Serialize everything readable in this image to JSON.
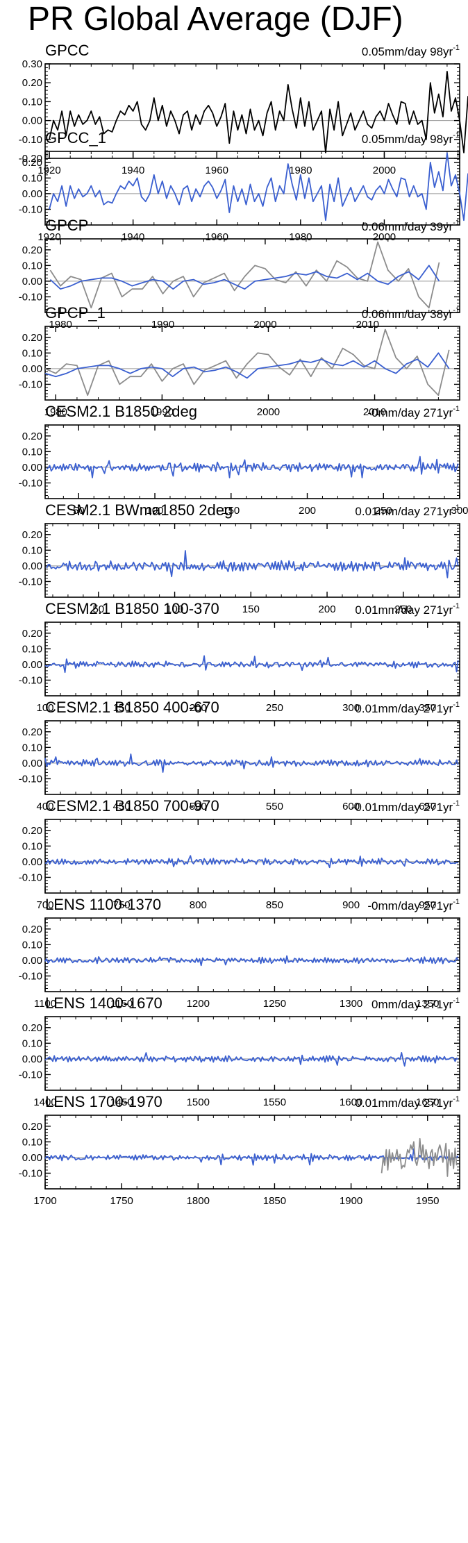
{
  "page": {
    "title": "PR Global Average (DJF)"
  },
  "colors": {
    "blue": "#3a5fd0",
    "gray": "#8c8c8c",
    "black": "#000000"
  },
  "chart_data": [
    {
      "type": "line",
      "title": "GPCC",
      "trend": "0.05mm/day 98yr",
      "xlim": [
        1919,
        2018
      ],
      "ylim": [
        -0.2,
        0.3
      ],
      "yticks": [
        0.3,
        0.2,
        0.1,
        0.0,
        -0.1,
        -0.2
      ],
      "ytick_labels": [
        "0.30",
        "0.20",
        "0.10",
        "0.00",
        "-0.10",
        "-0.20"
      ],
      "xticks": [
        1920,
        1940,
        1960,
        1980,
        2000
      ],
      "series": [
        {
          "color": "black",
          "x_start": 1920,
          "x_step": 1,
          "values": [
            -0.1,
            0.0,
            -0.05,
            0.05,
            -0.08,
            0.05,
            -0.03,
            0.03,
            -0.02,
            0.0,
            0.05,
            -0.02,
            0.02,
            -0.07,
            -0.05,
            -0.06,
            0.0,
            0.05,
            0.03,
            0.08,
            0.05,
            0.1,
            -0.02,
            -0.05,
            0.0,
            0.12,
            0.0,
            0.08,
            -0.03,
            0.05,
            0.0,
            -0.07,
            0.03,
            0.05,
            -0.05,
            0.03,
            -0.02,
            0.05,
            0.08,
            0.04,
            -0.03,
            0.02,
            0.09,
            -0.12,
            0.05,
            -0.05,
            0.03,
            -0.07,
            0.06,
            -0.05,
            0.0,
            -0.08,
            0.04,
            0.1,
            -0.05,
            0.05,
            0.0,
            0.19,
            0.06,
            -0.04,
            0.12,
            -0.03,
            0.1,
            -0.05,
            0.0,
            0.05,
            -0.17,
            0.06,
            -0.05,
            0.1,
            -0.08,
            -0.02,
            0.04,
            -0.05,
            0.0,
            0.05,
            -0.02,
            -0.04,
            0.02,
            0.05,
            0.0,
            0.09,
            0.03,
            -0.02,
            0.1,
            0.09,
            -0.02,
            0.05,
            -0.02,
            0.0,
            -0.1,
            0.2,
            0.04,
            0.14,
            0.02,
            0.26,
            0.05,
            0.12,
            0.0,
            -0.17,
            0.13
          ]
        }
      ]
    },
    {
      "type": "line",
      "title": "GPCC_1",
      "trend": "0.05mm/day 98yr",
      "xlim": [
        1919,
        2018
      ],
      "ylim": [
        -0.2,
        0.27
      ],
      "yticks": [
        0.2,
        0.1,
        0.0,
        -0.1
      ],
      "ytick_labels": [
        "0.20",
        "0.10",
        "0.00",
        "-0.10"
      ],
      "xticks": [
        1920,
        1940,
        1960,
        1980,
        2000
      ],
      "series": [
        {
          "color": "blue",
          "x_start": 1920,
          "x_step": 1,
          "values": [
            -0.1,
            0.0,
            -0.05,
            0.05,
            -0.08,
            0.05,
            -0.03,
            0.03,
            -0.02,
            0.0,
            0.05,
            -0.02,
            0.02,
            -0.07,
            -0.05,
            -0.06,
            0.0,
            0.05,
            0.03,
            0.08,
            0.05,
            0.1,
            -0.02,
            -0.05,
            0.0,
            0.12,
            0.0,
            0.08,
            -0.03,
            0.05,
            0.0,
            -0.07,
            0.03,
            0.05,
            -0.05,
            0.03,
            -0.02,
            0.05,
            0.08,
            0.04,
            -0.03,
            0.02,
            0.09,
            -0.12,
            0.05,
            -0.05,
            0.03,
            -0.07,
            0.06,
            -0.05,
            0.0,
            -0.08,
            0.04,
            0.1,
            -0.05,
            0.05,
            0.0,
            0.19,
            0.06,
            -0.04,
            0.12,
            -0.03,
            0.1,
            -0.05,
            0.0,
            0.05,
            -0.17,
            0.06,
            -0.05,
            0.1,
            -0.08,
            -0.02,
            0.04,
            -0.05,
            0.0,
            0.05,
            -0.02,
            -0.04,
            0.02,
            0.05,
            0.0,
            0.09,
            0.03,
            -0.02,
            0.1,
            0.09,
            -0.02,
            0.05,
            -0.02,
            0.0,
            -0.1,
            0.2,
            0.04,
            0.14,
            0.02,
            0.26,
            0.05,
            0.12,
            0.0,
            -0.17,
            0.13
          ]
        }
      ]
    },
    {
      "type": "line",
      "title": "GPCP",
      "trend": "0.06mm/day 39yr",
      "xlim": [
        1978.5,
        2019
      ],
      "ylim": [
        -0.2,
        0.27
      ],
      "yticks": [
        0.2,
        0.1,
        0.0,
        -0.1
      ],
      "ytick_labels": [
        "0.20",
        "0.10",
        "0.00",
        "-0.10"
      ],
      "xticks": [
        1980,
        1990,
        2000,
        2010
      ],
      "series": [
        {
          "color": "gray",
          "x_start": 1979,
          "x_step": 1,
          "values": [
            0.07,
            -0.03,
            0.03,
            0.01,
            -0.17,
            0.02,
            0.05,
            -0.1,
            -0.05,
            -0.05,
            0.03,
            -0.08,
            0.0,
            0.03,
            -0.1,
            -0.01,
            0.02,
            0.05,
            -0.06,
            0.03,
            0.1,
            0.08,
            0.01,
            -0.01,
            0.06,
            -0.03,
            0.07,
            0.0,
            0.13,
            0.09,
            0.02,
            0.0,
            0.25,
            0.07,
            0.0,
            0.08,
            -0.1,
            -0.17,
            0.12
          ]
        },
        {
          "color": "blue",
          "x_start": 1979,
          "x_step": 1,
          "values": [
            0.01,
            -0.05,
            -0.03,
            0.0,
            0.01,
            0.02,
            0.02,
            0.0,
            -0.03,
            -0.01,
            0.01,
            0.0,
            -0.05,
            0.0,
            0.01,
            -0.02,
            -0.01,
            0.01,
            -0.02,
            -0.05,
            0.0,
            0.01,
            0.02,
            0.03,
            0.05,
            0.04,
            0.06,
            0.03,
            0.02,
            0.05,
            0.01,
            0.05,
            0.0,
            -0.02,
            0.03,
            0.06,
            0.01,
            0.1,
            0.0
          ]
        }
      ]
    },
    {
      "type": "line",
      "title": "GPCP_1",
      "trend": "0.06mm/day 38yr",
      "xlim": [
        1979,
        2018
      ],
      "ylim": [
        -0.2,
        0.27
      ],
      "yticks": [
        0.2,
        0.1,
        0.0,
        -0.1
      ],
      "ytick_labels": [
        "0.20",
        "0.10",
        "0.00",
        "-0.10"
      ],
      "xticks": [
        1980,
        1990,
        2000,
        2010
      ],
      "series": [
        {
          "color": "gray",
          "x_start": 1979,
          "x_step": 1,
          "values": [
            0.0,
            -0.03,
            0.03,
            0.02,
            -0.17,
            0.02,
            0.05,
            -0.1,
            -0.05,
            -0.05,
            0.03,
            -0.08,
            0.0,
            0.03,
            -0.1,
            -0.01,
            0.02,
            0.05,
            -0.06,
            0.03,
            0.1,
            0.09,
            0.01,
            -0.04,
            0.06,
            -0.05,
            0.07,
            0.0,
            0.13,
            0.09,
            0.02,
            0.0,
            0.25,
            0.07,
            0.0,
            0.08,
            -0.1,
            -0.17,
            0.12
          ]
        },
        {
          "color": "blue",
          "x_start": 1979,
          "x_step": 1,
          "values": [
            -0.03,
            -0.05,
            -0.03,
            0.0,
            0.01,
            0.02,
            0.02,
            0.0,
            -0.03,
            0.0,
            0.01,
            0.0,
            -0.05,
            0.0,
            0.01,
            -0.02,
            -0.01,
            0.01,
            -0.02,
            -0.06,
            0.0,
            0.01,
            0.02,
            0.03,
            0.05,
            0.04,
            0.06,
            0.03,
            0.02,
            0.05,
            0.01,
            0.05,
            0.0,
            -0.03,
            0.03,
            0.06,
            0.01,
            0.1,
            0.0
          ]
        }
      ]
    },
    {
      "type": "line",
      "title": "CESM2.1 B1850 2deg",
      "trend": "-0mm/day 271yr",
      "xlim": [
        28,
        300
      ],
      "ylim": [
        -0.2,
        0.27
      ],
      "yticks": [
        0.2,
        0.1,
        0.0,
        -0.1
      ],
      "ytick_labels": [
        "0.20",
        "0.10",
        "0.00",
        "-0.10"
      ],
      "xticks": [
        50,
        100,
        150,
        200,
        250,
        300
      ],
      "series": [
        {
          "color": "blue",
          "x_start": 29,
          "x_step": 1,
          "n": 271,
          "amp": 0.03,
          "seed": 11
        }
      ]
    },
    {
      "type": "line",
      "title": "CESM2.1 BWma1850 2deg",
      "trend": "0.01mm/day 271yr",
      "xlim": [
        15,
        287
      ],
      "ylim": [
        -0.2,
        0.27
      ],
      "yticks": [
        0.2,
        0.1,
        0.0,
        -0.1
      ],
      "ytick_labels": [
        "0.20",
        "0.10",
        "0.00",
        "-0.10"
      ],
      "xticks": [
        50,
        100,
        150,
        200,
        250
      ],
      "series": [
        {
          "color": "blue",
          "x_start": 16,
          "x_step": 1,
          "n": 271,
          "amp": 0.035,
          "seed": 23
        }
      ]
    },
    {
      "type": "line",
      "title": "CESM2.1 B1850 100-370",
      "trend": "0.01mm/day 271yr",
      "xlim": [
        100,
        371
      ],
      "ylim": [
        -0.2,
        0.27
      ],
      "yticks": [
        0.2,
        0.1,
        0.0,
        -0.1
      ],
      "ytick_labels": [
        "0.20",
        "0.10",
        "0.00",
        "-0.10"
      ],
      "xticks": [
        100,
        150,
        200,
        250,
        300,
        350
      ],
      "series": [
        {
          "color": "blue",
          "x_start": 100,
          "x_step": 1,
          "n": 271,
          "amp": 0.022,
          "seed": 37
        }
      ]
    },
    {
      "type": "line",
      "title": "CESM2.1 B1850 400-670",
      "trend": "0.01mm/day 271yr",
      "xlim": [
        400,
        671
      ],
      "ylim": [
        -0.2,
        0.27
      ],
      "yticks": [
        0.2,
        0.1,
        0.0,
        -0.1
      ],
      "ytick_labels": [
        "0.20",
        "0.10",
        "0.00",
        "-0.10"
      ],
      "xticks": [
        400,
        450,
        500,
        550,
        600,
        650
      ],
      "series": [
        {
          "color": "blue",
          "x_start": 400,
          "x_step": 1,
          "n": 271,
          "amp": 0.022,
          "seed": 41
        }
      ]
    },
    {
      "type": "line",
      "title": "CESM2.1 B1850 700-970",
      "trend": "-0.01mm/day 271yr",
      "xlim": [
        700,
        971
      ],
      "ylim": [
        -0.2,
        0.27
      ],
      "yticks": [
        0.2,
        0.1,
        0.0,
        -0.1
      ],
      "ytick_labels": [
        "0.20",
        "0.10",
        "0.00",
        "-0.10"
      ],
      "xticks": [
        700,
        750,
        800,
        850,
        900,
        950
      ],
      "series": [
        {
          "color": "blue",
          "x_start": 700,
          "x_step": 1,
          "n": 271,
          "amp": 0.022,
          "seed": 53
        }
      ]
    },
    {
      "type": "line",
      "title": "LENS 1100-1370",
      "trend": "-0mm/day 271yr",
      "xlim": [
        1100,
        1371
      ],
      "ylim": [
        -0.2,
        0.27
      ],
      "yticks": [
        0.2,
        0.1,
        0.0,
        -0.1
      ],
      "ytick_labels": [
        "0.20",
        "0.10",
        "0.00",
        "-0.10"
      ],
      "xticks": [
        1100,
        1150,
        1200,
        1250,
        1300,
        1350
      ],
      "series": [
        {
          "color": "blue",
          "x_start": 1100,
          "x_step": 1,
          "n": 271,
          "amp": 0.02,
          "seed": 67
        }
      ]
    },
    {
      "type": "line",
      "title": "LENS 1400-1670",
      "trend": "0mm/day 271yr",
      "xlim": [
        1400,
        1671
      ],
      "ylim": [
        -0.2,
        0.27
      ],
      "yticks": [
        0.2,
        0.1,
        0.0,
        -0.1
      ],
      "ytick_labels": [
        "0.20",
        "0.10",
        "0.00",
        "-0.10"
      ],
      "xticks": [
        1400,
        1450,
        1500,
        1550,
        1600,
        1650
      ],
      "series": [
        {
          "color": "blue",
          "x_start": 1400,
          "x_step": 1,
          "n": 271,
          "amp": 0.02,
          "seed": 71
        }
      ]
    },
    {
      "type": "line",
      "title": "LENS 1700-1970",
      "trend": "0.01mm/day 271yr",
      "xlim": [
        1700,
        1971
      ],
      "ylim": [
        -0.2,
        0.27
      ],
      "yticks": [
        0.2,
        0.1,
        0.0,
        -0.1
      ],
      "ytick_labels": [
        "0.20",
        "0.10",
        "0.00",
        "-0.10"
      ],
      "xticks": [
        1700,
        1750,
        1800,
        1850,
        1900,
        1950
      ],
      "series": [
        {
          "color": "blue",
          "x_start": 1700,
          "x_step": 1,
          "n": 271,
          "amp": 0.02,
          "seed": 83
        },
        {
          "color": "gray",
          "x_start": 1920,
          "x_step": 1,
          "values": [
            -0.1,
            0.0,
            -0.05,
            0.05,
            -0.08,
            0.05,
            -0.03,
            0.03,
            -0.02,
            0.0,
            0.05,
            -0.02,
            0.02,
            -0.07,
            -0.05,
            -0.06,
            0.0,
            0.05,
            0.03,
            0.08,
            0.05,
            0.1,
            -0.02,
            -0.05,
            0.0,
            0.12,
            0.0,
            0.08,
            -0.03,
            0.05,
            0.0,
            -0.07,
            0.03,
            0.05,
            -0.05,
            0.03,
            -0.02,
            0.05,
            0.08,
            0.04,
            -0.03,
            0.02,
            0.09,
            -0.12,
            0.05,
            -0.05,
            0.03,
            -0.07,
            0.06,
            -0.05
          ]
        }
      ]
    }
  ]
}
